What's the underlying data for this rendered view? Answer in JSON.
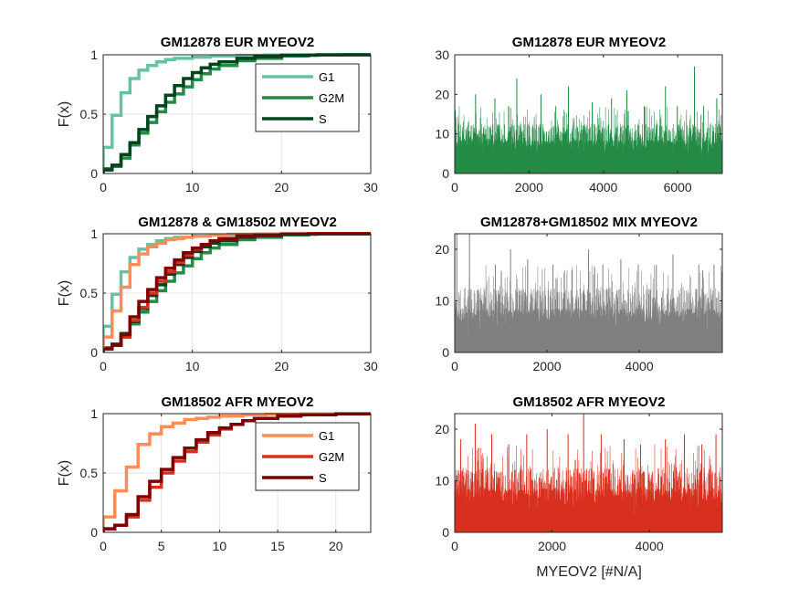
{
  "figure": {
    "background": "#ffffff"
  },
  "chart_data": [
    {
      "type": "line",
      "subtype": "ecdf",
      "title": "GM12878 EUR MYEOV2",
      "xlabel": "",
      "ylabel": "F(x)",
      "xlim": [
        0,
        30
      ],
      "ylim": [
        0,
        1
      ],
      "xticks": [
        0,
        10,
        20,
        30
      ],
      "yticks": [
        0,
        0.5,
        1
      ],
      "grid": true,
      "legend": "top-right",
      "series": [
        {
          "name": "G1",
          "color": "#66c2a4",
          "x": [
            0,
            1,
            2,
            3,
            4,
            5,
            6,
            7,
            8,
            10,
            12,
            15,
            18,
            22,
            27
          ],
          "y": [
            0.22,
            0.49,
            0.68,
            0.8,
            0.87,
            0.91,
            0.94,
            0.96,
            0.97,
            0.98,
            0.99,
            0.995,
            0.998,
            0.999,
            1
          ]
        },
        {
          "name": "G2M",
          "color": "#238b45",
          "x": [
            0,
            1,
            2,
            3,
            4,
            5,
            6,
            7,
            8,
            9,
            10,
            11,
            12,
            13,
            15,
            17,
            20,
            23,
            27
          ],
          "y": [
            0.04,
            0.06,
            0.13,
            0.24,
            0.34,
            0.43,
            0.52,
            0.6,
            0.67,
            0.73,
            0.79,
            0.84,
            0.88,
            0.91,
            0.95,
            0.97,
            0.99,
            0.998,
            1
          ]
        },
        {
          "name": "S",
          "color": "#00441b",
          "x": [
            0,
            1,
            2,
            3,
            4,
            5,
            6,
            7,
            8,
            9,
            10,
            11,
            12,
            13,
            15,
            17,
            20,
            24
          ],
          "y": [
            0.03,
            0.07,
            0.16,
            0.26,
            0.37,
            0.48,
            0.57,
            0.66,
            0.74,
            0.8,
            0.85,
            0.89,
            0.92,
            0.94,
            0.97,
            0.985,
            0.996,
            1
          ]
        }
      ]
    },
    {
      "type": "bar",
      "title": "GM12878 EUR MYEOV2",
      "xlabel": "",
      "ylabel": "",
      "xlim": [
        0,
        7200
      ],
      "ylim": [
        0,
        30
      ],
      "xticks": [
        0,
        2000,
        4000,
        6000
      ],
      "yticks": [
        0,
        10,
        20,
        30
      ],
      "grid": false,
      "color": "#238b45",
      "n": 7200,
      "peaks": [
        [
          15,
          16
        ],
        [
          560,
          20
        ],
        [
          1080,
          19
        ],
        [
          1450,
          17
        ],
        [
          1670,
          24
        ],
        [
          2320,
          20
        ],
        [
          2720,
          17
        ],
        [
          3060,
          22
        ],
        [
          3700,
          18
        ],
        [
          4220,
          19
        ],
        [
          4630,
          21
        ],
        [
          5100,
          17
        ],
        [
          5670,
          22
        ],
        [
          5990,
          17
        ],
        [
          6450,
          27
        ],
        [
          6700,
          17
        ],
        [
          7050,
          19
        ]
      ]
    },
    {
      "type": "line",
      "subtype": "ecdf",
      "title": "GM12878 & GM18502 MYEOV2",
      "xlabel": "",
      "ylabel": "F(x)",
      "xlim": [
        0,
        30
      ],
      "ylim": [
        0,
        1
      ],
      "xticks": [
        0,
        10,
        20,
        30
      ],
      "yticks": [
        0,
        0.5,
        1
      ],
      "grid": true,
      "legend": "none",
      "series": [
        {
          "name": "",
          "color": "#66c2a4",
          "x": [
            0,
            1,
            2,
            3,
            4,
            5,
            6,
            7,
            8,
            10,
            12,
            15,
            18,
            22,
            27
          ],
          "y": [
            0.22,
            0.49,
            0.68,
            0.8,
            0.87,
            0.91,
            0.94,
            0.96,
            0.97,
            0.98,
            0.99,
            0.995,
            0.998,
            0.999,
            1
          ]
        },
        {
          "name": "",
          "color": "#238b45",
          "x": [
            0,
            1,
            2,
            3,
            4,
            5,
            6,
            7,
            8,
            9,
            10,
            11,
            12,
            13,
            15,
            17,
            20,
            23,
            27
          ],
          "y": [
            0.04,
            0.06,
            0.13,
            0.24,
            0.34,
            0.43,
            0.52,
            0.6,
            0.67,
            0.73,
            0.79,
            0.84,
            0.88,
            0.91,
            0.95,
            0.97,
            0.99,
            0.998,
            1
          ]
        },
        {
          "name": "",
          "color": "#00441b",
          "x": [
            0,
            1,
            2,
            3,
            4,
            5,
            6,
            7,
            8,
            9,
            10,
            11,
            12,
            13,
            15,
            17,
            20,
            24
          ],
          "y": [
            0.03,
            0.07,
            0.16,
            0.26,
            0.37,
            0.48,
            0.57,
            0.66,
            0.74,
            0.8,
            0.85,
            0.89,
            0.92,
            0.94,
            0.97,
            0.985,
            0.996,
            1
          ]
        },
        {
          "name": "",
          "color": "#fc8d59",
          "x": [
            0,
            1,
            2,
            3,
            4,
            5,
            6,
            7,
            8,
            9,
            10,
            12,
            14,
            17,
            20,
            23
          ],
          "y": [
            0.13,
            0.35,
            0.55,
            0.74,
            0.83,
            0.89,
            0.92,
            0.95,
            0.96,
            0.97,
            0.98,
            0.99,
            0.995,
            0.998,
            0.999,
            1
          ]
        },
        {
          "name": "",
          "color": "#d7301f",
          "x": [
            0,
            1,
            2,
            3,
            4,
            5,
            6,
            7,
            8,
            9,
            10,
            11,
            12,
            13,
            15,
            17,
            20,
            23
          ],
          "y": [
            0.03,
            0.06,
            0.13,
            0.27,
            0.38,
            0.5,
            0.6,
            0.68,
            0.76,
            0.82,
            0.87,
            0.91,
            0.94,
            0.96,
            0.98,
            0.99,
            0.998,
            1
          ]
        },
        {
          "name": "",
          "color": "#7f0000",
          "x": [
            0,
            1,
            2,
            3,
            4,
            5,
            6,
            7,
            8,
            9,
            10,
            11,
            12,
            13,
            15,
            17,
            20,
            23
          ],
          "y": [
            0.03,
            0.06,
            0.15,
            0.3,
            0.43,
            0.53,
            0.63,
            0.71,
            0.78,
            0.84,
            0.88,
            0.91,
            0.94,
            0.96,
            0.98,
            0.99,
            0.998,
            1
          ]
        }
      ]
    },
    {
      "type": "bar",
      "title": "GM12878+GM18502 MIX MYEOV2",
      "xlabel": "",
      "ylabel": "",
      "xlim": [
        0,
        5800
      ],
      "ylim": [
        0,
        23
      ],
      "xticks": [
        0,
        2000,
        4000
      ],
      "yticks": [
        0,
        10,
        20
      ],
      "grid": false,
      "color": "#808080",
      "n": 5800,
      "peaks": [
        [
          45,
          23
        ],
        [
          320,
          23
        ],
        [
          880,
          17
        ],
        [
          1210,
          20
        ],
        [
          1580,
          18
        ],
        [
          2130,
          17
        ],
        [
          2540,
          16
        ],
        [
          2900,
          20
        ],
        [
          3210,
          17
        ],
        [
          3600,
          18
        ],
        [
          3980,
          17
        ],
        [
          4370,
          17
        ],
        [
          4730,
          19
        ],
        [
          5290,
          17
        ],
        [
          5620,
          17
        ]
      ]
    },
    {
      "type": "line",
      "subtype": "ecdf",
      "title": "GM18502 AFR MYEOV2",
      "xlabel": "",
      "ylabel": "F(x)",
      "xlim": [
        0,
        23
      ],
      "ylim": [
        0,
        1
      ],
      "xticks": [
        0,
        5,
        10,
        15,
        20
      ],
      "yticks": [
        0,
        0.5,
        1
      ],
      "grid": true,
      "legend": "top-right",
      "series": [
        {
          "name": "G1",
          "color": "#fc8d59",
          "x": [
            0,
            1,
            2,
            3,
            4,
            5,
            6,
            7,
            8,
            9,
            10,
            12,
            14,
            17,
            20,
            23
          ],
          "y": [
            0.13,
            0.35,
            0.55,
            0.74,
            0.83,
            0.89,
            0.92,
            0.95,
            0.96,
            0.97,
            0.98,
            0.99,
            0.995,
            0.998,
            0.999,
            1
          ]
        },
        {
          "name": "G2M",
          "color": "#d7301f",
          "x": [
            0,
            1,
            2,
            3,
            4,
            5,
            6,
            7,
            8,
            9,
            10,
            11,
            12,
            13,
            15,
            17,
            20,
            23
          ],
          "y": [
            0.03,
            0.06,
            0.13,
            0.27,
            0.38,
            0.5,
            0.6,
            0.68,
            0.76,
            0.82,
            0.87,
            0.91,
            0.94,
            0.96,
            0.98,
            0.99,
            0.998,
            1
          ]
        },
        {
          "name": "S",
          "color": "#7f0000",
          "x": [
            0,
            1,
            2,
            3,
            4,
            5,
            6,
            7,
            8,
            9,
            10,
            11,
            12,
            13,
            15,
            17,
            20,
            23
          ],
          "y": [
            0.03,
            0.06,
            0.15,
            0.3,
            0.43,
            0.53,
            0.63,
            0.71,
            0.78,
            0.84,
            0.88,
            0.91,
            0.94,
            0.96,
            0.98,
            0.99,
            0.998,
            1
          ]
        }
      ]
    },
    {
      "type": "bar",
      "title": "GM18502 AFR MYEOV2",
      "xlabel": "MYEOV2 [#N/A]",
      "ylabel": "",
      "xlim": [
        0,
        5500
      ],
      "ylim": [
        0,
        23
      ],
      "xticks": [
        0,
        2000,
        4000
      ],
      "yticks": [
        0,
        10,
        20
      ],
      "grid": false,
      "color": "#d7301f",
      "n": 5500,
      "peaks": [
        [
          120,
          18
        ],
        [
          420,
          21
        ],
        [
          760,
          19
        ],
        [
          1110,
          17
        ],
        [
          1480,
          19
        ],
        [
          1900,
          20
        ],
        [
          2330,
          19
        ],
        [
          2650,
          23
        ],
        [
          3010,
          19
        ],
        [
          3480,
          18
        ],
        [
          3820,
          17
        ],
        [
          4330,
          18
        ],
        [
          4720,
          19
        ],
        [
          5080,
          17
        ],
        [
          5370,
          19
        ]
      ]
    }
  ]
}
